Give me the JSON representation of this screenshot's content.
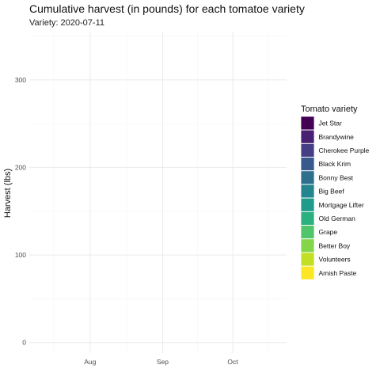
{
  "chart_data": {
    "type": "line",
    "title": "Cumulative harvest (in pounds) for each tomatoe variety",
    "subtitle": "Variety: 2020-07-11",
    "xlabel": "",
    "ylabel": "Harvest (lbs)",
    "x_ticks": [
      "Aug",
      "Sep",
      "Oct"
    ],
    "x_tick_dates": [
      "2020-08-01",
      "2020-09-01",
      "2020-10-01"
    ],
    "xlim": [
      "2020-07-06",
      "2020-10-24"
    ],
    "y_ticks": [
      0,
      100,
      200,
      300
    ],
    "ylim": [
      -12,
      355
    ],
    "grid": true,
    "legend_title": "Tomato variety",
    "legend_position": "right",
    "series": [
      {
        "name": "Jet Star",
        "color": "#440154",
        "values": []
      },
      {
        "name": "Brandywine",
        "color": "#482173",
        "values": []
      },
      {
        "name": "Cherokee Purple",
        "color": "#433E85",
        "values": []
      },
      {
        "name": "Black Krim",
        "color": "#38598C",
        "values": []
      },
      {
        "name": "Bonny Best",
        "color": "#2D708E",
        "values": []
      },
      {
        "name": "Big Beef",
        "color": "#25858E",
        "values": []
      },
      {
        "name": "Mortgage Lifter",
        "color": "#1E9B8A",
        "values": []
      },
      {
        "name": "Old German",
        "color": "#2BB07F",
        "values": []
      },
      {
        "name": "Grape",
        "color": "#51C56A",
        "values": []
      },
      {
        "name": "Better Boy",
        "color": "#85D54A",
        "values": []
      },
      {
        "name": "Volunteers",
        "color": "#C2DF23",
        "values": []
      },
      {
        "name": "Amish Paste",
        "color": "#FDE725",
        "values": []
      }
    ]
  }
}
